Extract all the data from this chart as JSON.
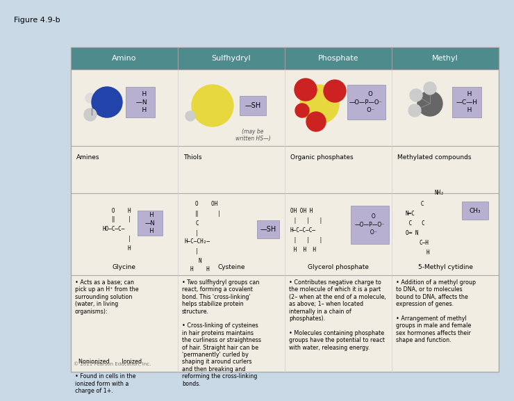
{
  "figure_title": "Figure 4.9-b",
  "bg_color": "#c8d8e5",
  "table_bg": "#f2ede3",
  "header_bg": "#4e8b8d",
  "header_text_color": "#ffffff",
  "header_font_size": 8,
  "columns": [
    "Amino",
    "Sulfhydryl",
    "Phosphate",
    "Methyl"
  ],
  "row1_labels": [
    "Amines",
    "Thiols",
    "Organic phosphates",
    "Methylated compounds"
  ],
  "row2_labels": [
    "Glycine",
    "Cysteine",
    "Glycerol phosphate",
    "5-Methyl cytidine"
  ],
  "row3_texts": [
    "• Acts as a base; can\npick up an H⁺ from the\nsurrounding solution\n(water, in living\norganisms):\n\n\n\n\n\n\n  Nonionized       Ionized\n\n• Found in cells in the\nionized form with a\ncharge of 1+.",
    "• Two sulfhydryl groups can\nreact, forming a covalent\nbond. This 'cross-linking'\nhelps stabilize protein\nstructure.\n\n• Cross-linking of cysteines\nin hair proteins maintains\nthe curliness or straightness\nof hair. Straight hair can be\n'permanently' curled by\nshaping it around curlers\nand then breaking and\nreforming the cross-linking\nbonds.",
    "• Contributes negative charge to\nthe molecule of which it is a part\n(2– when at the end of a molecule,\nas above; 1– when located\ninternally in a chain of\nphosphates).\n\n• Molecules containing phosphate\ngroups have the potential to react\nwith water, releasing energy.",
    "• Addition of a methyl group\nto DNA, or to molecules\nbound to DNA, affects the\nexpression of genes.\n\n• Arrangement of methyl\ngroups in male and female\nsex hormones affects their\nshape and function."
  ],
  "note_sulfhydryl": "(may be\nwritten HS—)",
  "copyright": "© 2011 Pearson Education, Inc.",
  "outer_border_color": "#aaaaaa",
  "divider_color": "#aaaaaa",
  "cell_border_color": "#cccccc",
  "label_font_size": 6.5,
  "text_font_size": 5.8,
  "title_font_size": 8,
  "box_color": "#b8b0d0",
  "box_edge_color": "#9090aa"
}
